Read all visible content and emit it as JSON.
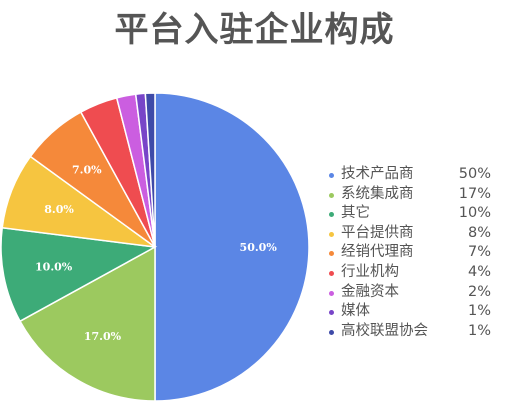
{
  "chart_data": {
    "type": "pie",
    "title": "平台入驻企业构成",
    "legend_position": "right",
    "slices": [
      {
        "name": "技术产品商",
        "value": 50,
        "label": "50.0%",
        "legend_value": "50%",
        "color": "#5b86e5"
      },
      {
        "name": "系统集成商",
        "value": 17,
        "label": "17.0%",
        "legend_value": "17%",
        "color": "#9cc95f"
      },
      {
        "name": "其它",
        "value": 10,
        "label": "10.0%",
        "legend_value": "10%",
        "color": "#3dab78"
      },
      {
        "name": "平台提供商",
        "value": 8,
        "label": "8.0%",
        "legend_value": "8%",
        "color": "#f6c540"
      },
      {
        "name": "经销代理商",
        "value": 7,
        "label": "7.0%",
        "legend_value": "7%",
        "color": "#f5893a"
      },
      {
        "name": "行业机构",
        "value": 4,
        "label": "",
        "legend_value": "4%",
        "color": "#ef4c50"
      },
      {
        "name": "金融资本",
        "value": 2,
        "label": "",
        "legend_value": "2%",
        "color": "#cb5ee0"
      },
      {
        "name": "媒体",
        "value": 1,
        "label": "",
        "legend_value": "1%",
        "color": "#7845c8"
      },
      {
        "name": "高校联盟协会",
        "value": 1,
        "label": "",
        "legend_value": "1%",
        "color": "#3e4aa8"
      }
    ]
  }
}
